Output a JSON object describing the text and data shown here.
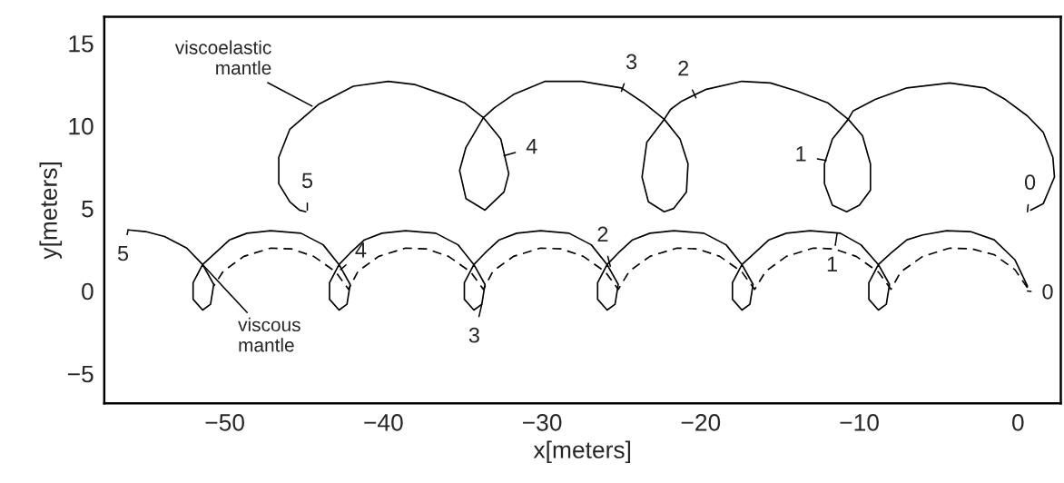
{
  "chart_data": {
    "type": "line",
    "xlabel": "x[meters]",
    "ylabel": "y[meters]",
    "xlim": [
      -57.6,
      2.7
    ],
    "ylim": [
      -6.8,
      16.6
    ],
    "xticks": [
      {
        "value": -50,
        "label": "−50"
      },
      {
        "value": -40,
        "label": "−40"
      },
      {
        "value": -30,
        "label": "−30"
      },
      {
        "value": -20,
        "label": "−20"
      },
      {
        "value": -10,
        "label": "−10"
      },
      0
    ],
    "yticks": [
      {
        "value": -5,
        "label": "−5"
      },
      0,
      5,
      10,
      15
    ],
    "grid": false,
    "marker": "none",
    "series": [
      {
        "color": "#000000",
        "line_style": "solid",
        "x": [
          0.8,
          1.6,
          2.3,
          2.2,
          1.6,
          0.6,
          -0.8,
          -2.1,
          -4.3,
          -7.0,
          -9.0,
          -10.4,
          -10.7,
          -11.7,
          -12.2,
          -12.2,
          -11.7,
          -10.8,
          -10.0,
          -9.3,
          -9.3,
          -9.8,
          -10.7,
          -12.0,
          -13.9,
          -15.6,
          -17.4,
          -19.7,
          -21.2,
          -21.9,
          -22.3,
          -23.4,
          -23.7,
          -23.3,
          -22.3,
          -21.7,
          -20.9,
          -20.8,
          -21.3,
          -22.3,
          -23.6,
          -25.0,
          -27.5,
          -29.8,
          -31.8,
          -33.0,
          -33.7,
          -34.8,
          -35.2,
          -34.8,
          -33.6,
          -32.4,
          -32.1,
          -32.6,
          -33.7,
          -34.9,
          -36.2,
          -38.0,
          -39.7,
          -41.9,
          -44.1,
          -45.9,
          -46.6,
          -46.6,
          -45.9,
          -45.3,
          -44.9
        ],
        "values": [
          4.9,
          5.3,
          6.9,
          8.1,
          9.6,
          10.6,
          11.6,
          12.3,
          12.6,
          12.3,
          11.6,
          10.9,
          10.4,
          9.2,
          7.7,
          6.5,
          5.2,
          4.8,
          5.2,
          6.1,
          7.7,
          9.4,
          10.4,
          11.4,
          12.1,
          12.6,
          12.7,
          12.2,
          11.5,
          11.0,
          10.4,
          9.0,
          6.9,
          5.4,
          4.8,
          5.0,
          6.0,
          7.7,
          9.2,
          10.4,
          11.4,
          12.3,
          12.7,
          12.7,
          11.9,
          11.1,
          10.5,
          8.7,
          7.3,
          5.6,
          4.9,
          6.0,
          7.1,
          9.2,
          10.5,
          11.4,
          11.9,
          12.5,
          12.7,
          12.4,
          11.3,
          9.8,
          8.1,
          6.5,
          5.4,
          4.9,
          4.8
        ]
      },
      {
        "color": "#000000",
        "line_style": "solid",
        "x": [
          0.6,
          -0.2,
          -1.5,
          -3.0,
          -4.5,
          -6.0,
          -7.0,
          -8.0,
          -8.8,
          -9.4,
          -9.4,
          -8.8,
          -8.3,
          -8.1,
          -8.8,
          -9.9,
          -11.2,
          -13.1,
          -14.6,
          -15.7,
          -16.6,
          -17.4,
          -18.0,
          -18.0,
          -17.4,
          -16.9,
          -16.7,
          -17.4,
          -18.4,
          -19.8,
          -21.7,
          -23.2,
          -24.3,
          -25.2,
          -25.9,
          -26.5,
          -26.5,
          -25.9,
          -25.4,
          -25.2,
          -25.9,
          -26.9,
          -28.3,
          -30.1,
          -31.6,
          -32.7,
          -33.6,
          -34.3,
          -34.9,
          -34.9,
          -34.3,
          -33.8,
          -33.6,
          -34.3,
          -35.3,
          -36.7,
          -38.6,
          -40.1,
          -41.2,
          -42.1,
          -42.8,
          -43.4,
          -43.4,
          -42.8,
          -42.3,
          -42.1,
          -42.8,
          -43.8,
          -45.2,
          -47.1,
          -48.6,
          -49.7,
          -50.6,
          -51.4,
          -52.0,
          -52.0,
          -51.4,
          -50.9,
          -50.7,
          -51.4,
          -52.4,
          -53.8,
          -55.0,
          -56.1
        ],
        "values": [
          0.3,
          1.9,
          3.1,
          3.6,
          3.65,
          3.4,
          3.1,
          2.3,
          1.6,
          0.5,
          -0.5,
          -1.15,
          -0.8,
          0.4,
          1.6,
          2.8,
          3.5,
          3.65,
          3.5,
          3.1,
          2.3,
          1.6,
          0.5,
          -0.5,
          -1.15,
          -0.8,
          0.4,
          1.6,
          2.8,
          3.5,
          3.65,
          3.5,
          3.1,
          2.3,
          1.6,
          0.5,
          -0.5,
          -1.15,
          -0.8,
          0.4,
          1.6,
          2.8,
          3.5,
          3.65,
          3.5,
          3.1,
          2.3,
          1.6,
          0.5,
          -0.5,
          -1.15,
          -0.8,
          0.4,
          1.6,
          2.8,
          3.5,
          3.65,
          3.5,
          3.1,
          2.3,
          1.6,
          0.5,
          -0.5,
          -1.15,
          -0.8,
          0.4,
          1.6,
          2.8,
          3.5,
          3.65,
          3.5,
          3.1,
          2.3,
          1.6,
          0.5,
          -0.5,
          -1.15,
          -0.8,
          0.4,
          1.6,
          2.6,
          3.3,
          3.6,
          3.7
        ]
      },
      {
        "color": "#000000",
        "line_style": "dashed",
        "x": [
          0.6,
          -0.2,
          -1.5,
          -2.9,
          -4.3,
          -6.0,
          -7.4,
          -8.0,
          -8.8,
          -10.2,
          -11.6,
          -12.9,
          -14.6,
          -15.9,
          -16.6,
          -17.4,
          -18.8,
          -20.2,
          -21.5,
          -23.2,
          -24.5,
          -25.2,
          -26.0,
          -27.4,
          -28.8,
          -30.1,
          -31.8,
          -33.1,
          -33.7,
          -34.5,
          -35.9,
          -37.3,
          -38.6,
          -40.3,
          -41.6,
          -42.2,
          -43.0,
          -44.4,
          -45.8,
          -47.1,
          -48.8,
          -50.1,
          -50.7
        ],
        "values": [
          0.2,
          1.3,
          2.2,
          2.55,
          2.6,
          2.1,
          1.15,
          0.1,
          1.15,
          2.1,
          2.55,
          2.6,
          2.1,
          1.2,
          0.1,
          1.15,
          2.1,
          2.55,
          2.6,
          2.1,
          1.2,
          0.1,
          1.15,
          2.1,
          2.55,
          2.6,
          2.1,
          1.2,
          0.1,
          1.15,
          2.1,
          2.55,
          2.6,
          2.1,
          1.2,
          0.1,
          1.15,
          2.1,
          2.55,
          2.6,
          2.1,
          1.2,
          0.3
        ]
      }
    ],
    "annotations": [
      {
        "text": "0",
        "x": 0.6,
        "y": 4.8
      },
      {
        "text": "1",
        "x": -12.1,
        "y": 7.9
      },
      {
        "text": "2",
        "x": -20.3,
        "y": 11.7
      },
      {
        "text": "3",
        "x": -25.0,
        "y": 12.1
      },
      {
        "text": "4",
        "x": -32.4,
        "y": 8.2
      },
      {
        "text": "5",
        "x": -44.8,
        "y": 4.9
      },
      {
        "text": "0",
        "x": 0.6,
        "y": 0.0
      },
      {
        "text": "1",
        "x": -11.4,
        "y": 3.5
      },
      {
        "text": "2",
        "x": -25.7,
        "y": 1.5
      },
      {
        "text": "3",
        "x": -33.8,
        "y": -0.8
      },
      {
        "text": "4",
        "x": -42.7,
        "y": 1.3
      },
      {
        "text": "5",
        "x": -56.1,
        "y": 3.7
      },
      {
        "text": "viscoelastic\nmantle",
        "x": -44.5,
        "y": 11.2
      },
      {
        "text": "viscous\nmantle",
        "x": -51.4,
        "y": 1.6
      }
    ]
  }
}
